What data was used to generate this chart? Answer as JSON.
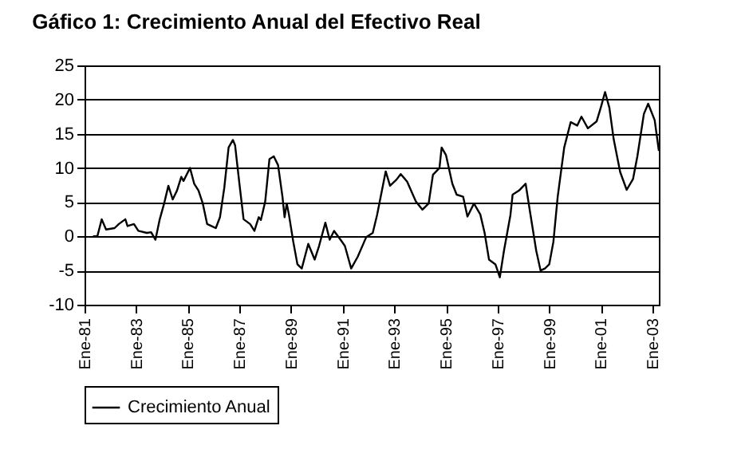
{
  "chart_data": {
    "type": "line",
    "title": "Gáfico 1: Crecimiento Anual del Efectivo Real",
    "series": [
      {
        "name": "Crecimiento Anual",
        "color": "#000000",
        "x": [
          "1981-05",
          "1981-07",
          "1981-09",
          "1981-11",
          "1982-03",
          "1982-05",
          "1982-08",
          "1982-09",
          "1982-12",
          "1983-02",
          "1983-06",
          "1983-08",
          "1983-10",
          "1983-12",
          "1984-02",
          "1984-04",
          "1984-06",
          "1984-08",
          "1984-10",
          "1984-11",
          "1985-02",
          "1985-04",
          "1985-06",
          "1985-08",
          "1985-10",
          "1985-12",
          "1986-02",
          "1986-04",
          "1986-06",
          "1986-08",
          "1986-10",
          "1986-11",
          "1987-01",
          "1987-03",
          "1987-06",
          "1987-08",
          "1987-10",
          "1987-11",
          "1988-01",
          "1988-03",
          "1988-05",
          "1988-07",
          "1988-09",
          "1988-10",
          "1988-11",
          "1988-12",
          "1989-02",
          "1989-04",
          "1989-06",
          "1989-09",
          "1989-12",
          "1990-02",
          "1990-05",
          "1990-07",
          "1990-09",
          "1990-12",
          "1991-02",
          "1991-05",
          "1991-08",
          "1991-12",
          "1992-03",
          "1992-05",
          "1992-09",
          "1992-11",
          "1993-02",
          "1993-04",
          "1993-07",
          "1993-11",
          "1994-02",
          "1994-05",
          "1994-07",
          "1994-10",
          "1994-11",
          "1995-01",
          "1995-04",
          "1995-06",
          "1995-09",
          "1995-11",
          "1996-02",
          "1996-05",
          "1996-07",
          "1996-09",
          "1996-12",
          "1997-02",
          "1997-04",
          "1997-07",
          "1997-08",
          "1997-11",
          "1998-02",
          "1998-04",
          "1998-07",
          "1998-09",
          "1998-11",
          "1999-01",
          "1999-03",
          "1999-05",
          "1999-08",
          "1999-11",
          "2000-02",
          "2000-04",
          "2000-07",
          "2000-11",
          "2001-01",
          "2001-03",
          "2001-05",
          "2001-07",
          "2001-10",
          "2002-01",
          "2002-04",
          "2002-06",
          "2002-09",
          "2002-11",
          "2003-02",
          "2003-04"
        ],
        "values": [
          0,
          0,
          2.5,
          1.0,
          1.2,
          1.8,
          2.5,
          1.5,
          1.8,
          0.8,
          0.5,
          0.6,
          -0.5,
          2.5,
          4.8,
          7.4,
          5.4,
          6.7,
          8.7,
          8.1,
          10.0,
          7.7,
          6.7,
          4.8,
          1.8,
          1.5,
          1.2,
          2.8,
          7.1,
          13.0,
          14.1,
          13.3,
          7.7,
          2.5,
          1.8,
          0.8,
          2.8,
          2.4,
          5.1,
          11.3,
          11.7,
          10.4,
          5.8,
          2.8,
          4.8,
          3.2,
          -0.8,
          -4.1,
          -4.7,
          -1.1,
          -3.4,
          -1.4,
          2.0,
          -0.5,
          0.8,
          -0.5,
          -1.4,
          -4.7,
          -3.0,
          -0.1,
          0.5,
          3.1,
          9.5,
          7.4,
          8.3,
          9.1,
          8.0,
          5.1,
          3.9,
          4.8,
          9.0,
          10.0,
          13.0,
          11.9,
          7.7,
          6.1,
          5.8,
          2.9,
          4.8,
          3.2,
          0.5,
          -3.4,
          -4.1,
          -6.0,
          -2.1,
          3.1,
          6.1,
          6.7,
          7.7,
          3.8,
          -2.1,
          -5.0,
          -4.7,
          -4.1,
          -0.8,
          5.8,
          13.0,
          16.7,
          16.2,
          17.5,
          15.8,
          16.8,
          18.9,
          21.1,
          18.8,
          14.2,
          9.4,
          6.8,
          8.4,
          11.7,
          17.9,
          19.4,
          17.0,
          12.5
        ]
      }
    ],
    "xlim": [
      "1981-01",
      "2003-04"
    ],
    "xticks": [
      {
        "value": "1981-01",
        "label": "Ene-81"
      },
      {
        "value": "1983-01",
        "label": "Ene-83"
      },
      {
        "value": "1985-01",
        "label": "Ene-85"
      },
      {
        "value": "1987-01",
        "label": "Ene-87"
      },
      {
        "value": "1989-01",
        "label": "Ene-89"
      },
      {
        "value": "1991-01",
        "label": "Ene-91"
      },
      {
        "value": "1993-01",
        "label": "Ene-93"
      },
      {
        "value": "1995-01",
        "label": "Ene-95"
      },
      {
        "value": "1997-01",
        "label": "Ene-97"
      },
      {
        "value": "1999-01",
        "label": "Ene-99"
      },
      {
        "value": "2001-01",
        "label": "Ene-01"
      },
      {
        "value": "2003-01",
        "label": "Ene-03"
      }
    ],
    "ylim": [
      -10,
      25
    ],
    "yticks": [
      -10,
      -5,
      0,
      5,
      10,
      15,
      20,
      25
    ],
    "grid": "y",
    "legend": "bottom",
    "marker": "none",
    "line_style": "solid"
  }
}
